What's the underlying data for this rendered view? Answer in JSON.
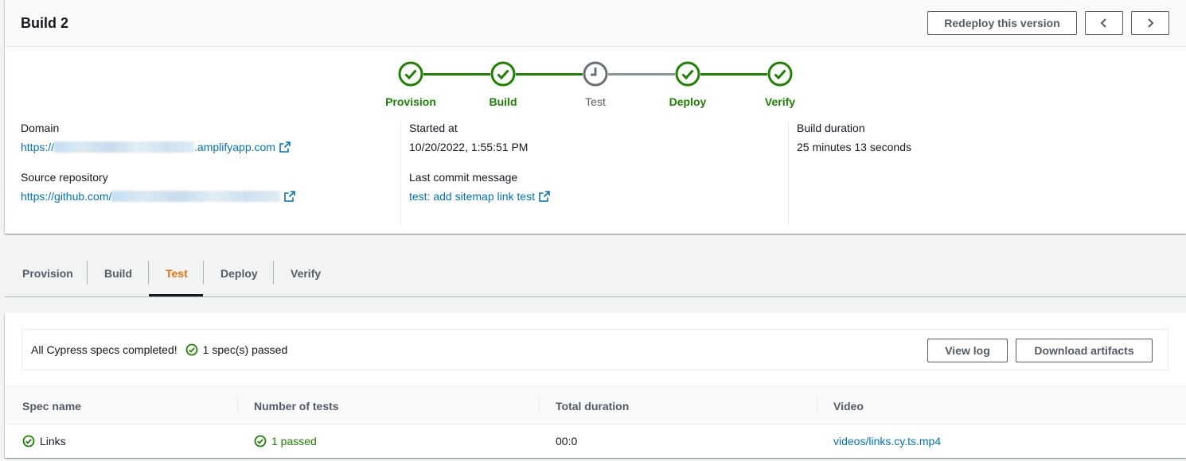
{
  "header": {
    "title": "Build 2",
    "redeploy_label": "Redeploy this version",
    "prev_icon": "chevron-left-icon",
    "next_icon": "chevron-right-icon"
  },
  "stepper": {
    "steps": [
      {
        "label": "Provision",
        "status": "success"
      },
      {
        "label": "Build",
        "status": "success"
      },
      {
        "label": "Test",
        "status": "pending"
      },
      {
        "label": "Deploy",
        "status": "success"
      },
      {
        "label": "Verify",
        "status": "success"
      }
    ],
    "colors": {
      "success": "#1d8102",
      "pending": "#687078"
    }
  },
  "details": {
    "domain_label": "Domain",
    "domain_prefix": "https://",
    "domain_suffix": ".amplifyapp.com",
    "repo_label": "Source repository",
    "repo_prefix": "https://github.com/",
    "started_label": "Started at",
    "started_value": "10/20/2022, 1:55:51 PM",
    "commit_label": "Last commit message",
    "commit_value": "test: add sitemap link test",
    "duration_label": "Build duration",
    "duration_value": "25 minutes 13 seconds"
  },
  "tabs": [
    {
      "label": "Provision",
      "active": false
    },
    {
      "label": "Build",
      "active": false
    },
    {
      "label": "Test",
      "active": true
    },
    {
      "label": "Deploy",
      "active": false
    },
    {
      "label": "Verify",
      "active": false
    }
  ],
  "test": {
    "summary_text": "All Cypress specs completed!",
    "passed_text": "1 spec(s) passed",
    "view_log_label": "View log",
    "download_label": "Download artifacts",
    "columns": [
      "Spec name",
      "Number of tests",
      "Total duration",
      "Video"
    ],
    "rows": [
      {
        "spec": "Links",
        "tests": "1 passed",
        "duration": "00:0",
        "video": "videos/links.cy.ts.mp4"
      }
    ]
  }
}
